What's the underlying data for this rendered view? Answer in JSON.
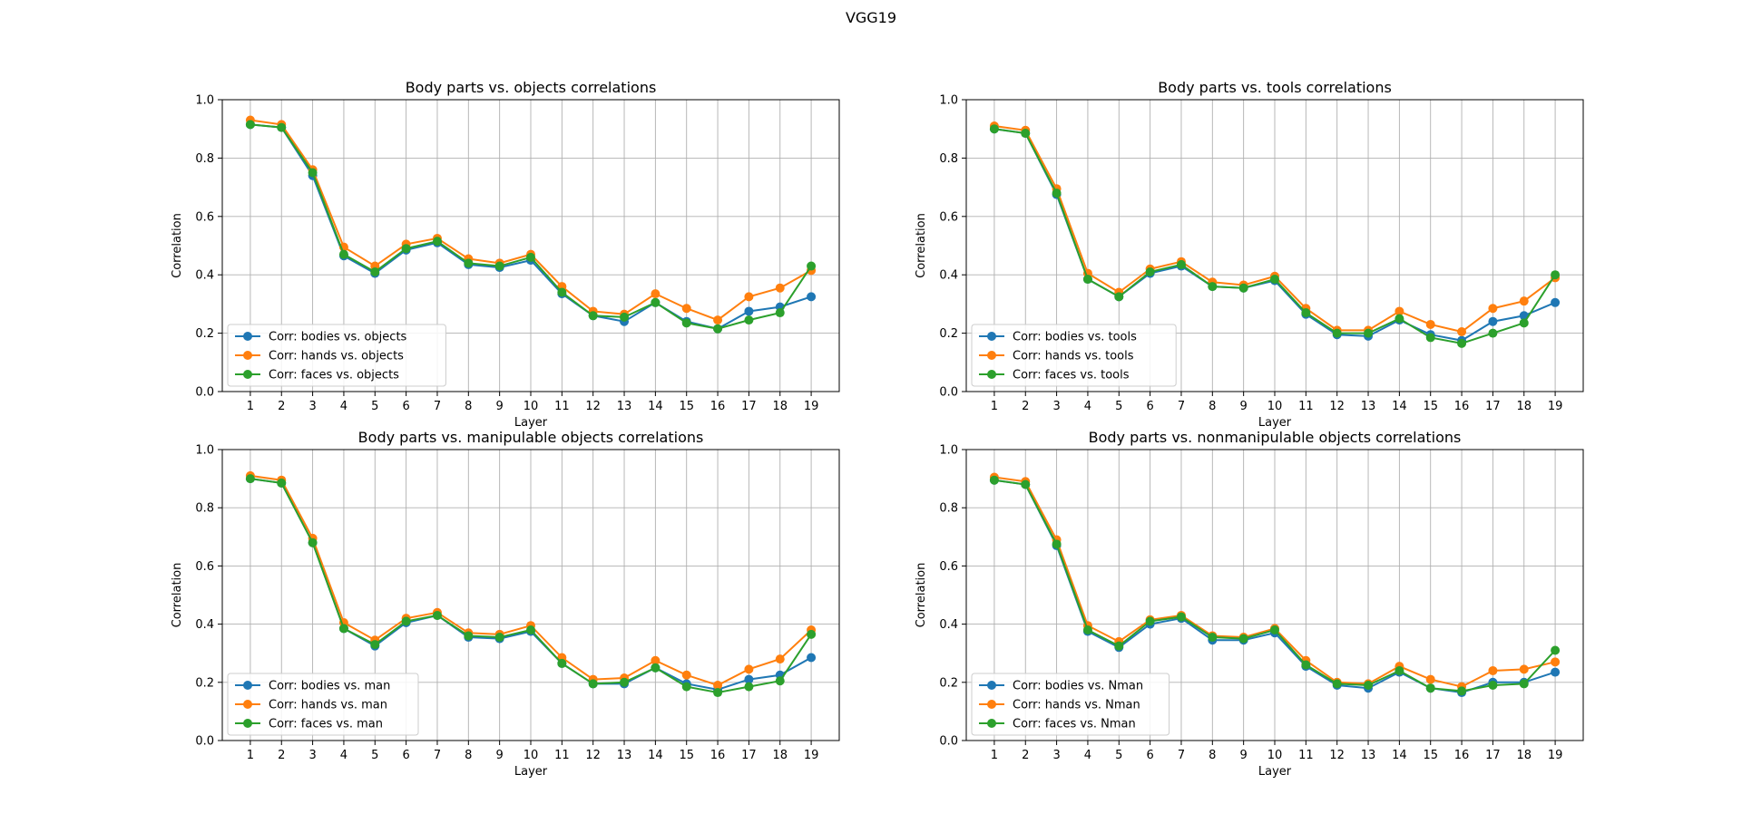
{
  "figure": {
    "suptitle": "VGG19"
  },
  "colors": {
    "series": [
      "#1f77b4",
      "#ff7f0e",
      "#2ca02c"
    ],
    "grid": "#b0b0b0"
  },
  "chart_data": [
    {
      "type": "line",
      "title": "Body parts vs. objects correlations",
      "xlabel": "Layer",
      "ylabel": "Correlation",
      "x": [
        1,
        2,
        3,
        4,
        5,
        6,
        7,
        8,
        9,
        10,
        11,
        12,
        13,
        14,
        15,
        16,
        17,
        18,
        19
      ],
      "xticks": [
        "1",
        "2",
        "3",
        "4",
        "5",
        "6",
        "7",
        "8",
        "9",
        "10",
        "11",
        "12",
        "13",
        "14",
        "15",
        "16",
        "17",
        "18",
        "19"
      ],
      "ylim": [
        0,
        1
      ],
      "yticks": [
        "0.0",
        "0.2",
        "0.4",
        "0.6",
        "0.8",
        "1.0"
      ],
      "grid": true,
      "legend_position": "lower-left",
      "series": [
        {
          "name": "Corr: bodies vs. objects",
          "values": [
            0.915,
            0.905,
            0.74,
            0.465,
            0.405,
            0.485,
            0.51,
            0.435,
            0.425,
            0.45,
            0.335,
            0.26,
            0.24,
            0.305,
            0.24,
            0.215,
            0.275,
            0.29,
            0.325
          ]
        },
        {
          "name": "Corr: hands vs. objects",
          "values": [
            0.93,
            0.915,
            0.76,
            0.495,
            0.43,
            0.505,
            0.525,
            0.455,
            0.44,
            0.47,
            0.36,
            0.275,
            0.265,
            0.335,
            0.285,
            0.245,
            0.325,
            0.355,
            0.415
          ]
        },
        {
          "name": "Corr: faces vs. objects",
          "values": [
            0.915,
            0.905,
            0.75,
            0.47,
            0.41,
            0.49,
            0.515,
            0.44,
            0.43,
            0.46,
            0.34,
            0.26,
            0.255,
            0.305,
            0.235,
            0.215,
            0.245,
            0.27,
            0.43
          ]
        }
      ]
    },
    {
      "type": "line",
      "title": "Body parts vs. tools correlations",
      "xlabel": "Layer",
      "ylabel": "Correlation",
      "x": [
        1,
        2,
        3,
        4,
        5,
        6,
        7,
        8,
        9,
        10,
        11,
        12,
        13,
        14,
        15,
        16,
        17,
        18,
        19
      ],
      "xticks": [
        "1",
        "2",
        "3",
        "4",
        "5",
        "6",
        "7",
        "8",
        "9",
        "10",
        "11",
        "12",
        "13",
        "14",
        "15",
        "16",
        "17",
        "18",
        "19"
      ],
      "ylim": [
        0,
        1
      ],
      "yticks": [
        "0.0",
        "0.2",
        "0.4",
        "0.6",
        "0.8",
        "1.0"
      ],
      "grid": true,
      "legend_position": "lower-left",
      "series": [
        {
          "name": "Corr: bodies vs. tools",
          "values": [
            0.9,
            0.885,
            0.675,
            0.385,
            0.325,
            0.405,
            0.43,
            0.36,
            0.355,
            0.38,
            0.265,
            0.195,
            0.19,
            0.245,
            0.195,
            0.175,
            0.24,
            0.26,
            0.305
          ]
        },
        {
          "name": "Corr: hands vs. tools",
          "values": [
            0.91,
            0.895,
            0.695,
            0.405,
            0.34,
            0.42,
            0.445,
            0.375,
            0.365,
            0.395,
            0.285,
            0.21,
            0.21,
            0.275,
            0.23,
            0.205,
            0.285,
            0.31,
            0.39
          ]
        },
        {
          "name": "Corr: faces vs. tools",
          "values": [
            0.9,
            0.885,
            0.68,
            0.385,
            0.325,
            0.41,
            0.435,
            0.36,
            0.355,
            0.385,
            0.27,
            0.2,
            0.2,
            0.25,
            0.185,
            0.165,
            0.2,
            0.235,
            0.4
          ]
        }
      ]
    },
    {
      "type": "line",
      "title": "Body parts vs. manipulable objects correlations",
      "xlabel": "Layer",
      "ylabel": "Correlation",
      "x": [
        1,
        2,
        3,
        4,
        5,
        6,
        7,
        8,
        9,
        10,
        11,
        12,
        13,
        14,
        15,
        16,
        17,
        18,
        19
      ],
      "xticks": [
        "1",
        "2",
        "3",
        "4",
        "5",
        "6",
        "7",
        "8",
        "9",
        "10",
        "11",
        "12",
        "13",
        "14",
        "15",
        "16",
        "17",
        "18",
        "19"
      ],
      "ylim": [
        0,
        1
      ],
      "yticks": [
        "0.0",
        "0.2",
        "0.4",
        "0.6",
        "0.8",
        "1.0"
      ],
      "grid": true,
      "legend_position": "lower-left",
      "series": [
        {
          "name": "Corr: bodies vs. man",
          "values": [
            0.9,
            0.885,
            0.68,
            0.385,
            0.325,
            0.405,
            0.43,
            0.355,
            0.35,
            0.375,
            0.265,
            0.195,
            0.195,
            0.25,
            0.195,
            0.175,
            0.21,
            0.225,
            0.285
          ]
        },
        {
          "name": "Corr: hands vs. man",
          "values": [
            0.91,
            0.895,
            0.695,
            0.405,
            0.345,
            0.42,
            0.44,
            0.37,
            0.365,
            0.395,
            0.285,
            0.21,
            0.215,
            0.275,
            0.225,
            0.19,
            0.245,
            0.28,
            0.38
          ]
        },
        {
          "name": "Corr: faces vs. man",
          "values": [
            0.9,
            0.885,
            0.68,
            0.385,
            0.33,
            0.41,
            0.43,
            0.36,
            0.355,
            0.38,
            0.265,
            0.195,
            0.2,
            0.25,
            0.185,
            0.165,
            0.185,
            0.205,
            0.365
          ]
        }
      ]
    },
    {
      "type": "line",
      "title": "Body parts vs. nonmanipulable objects correlations",
      "xlabel": "Layer",
      "ylabel": "Correlation",
      "x": [
        1,
        2,
        3,
        4,
        5,
        6,
        7,
        8,
        9,
        10,
        11,
        12,
        13,
        14,
        15,
        16,
        17,
        18,
        19
      ],
      "xticks": [
        "1",
        "2",
        "3",
        "4",
        "5",
        "6",
        "7",
        "8",
        "9",
        "10",
        "11",
        "12",
        "13",
        "14",
        "15",
        "16",
        "17",
        "18",
        "19"
      ],
      "ylim": [
        0,
        1
      ],
      "yticks": [
        "0.0",
        "0.2",
        "0.4",
        "0.6",
        "0.8",
        "1.0"
      ],
      "grid": true,
      "legend_position": "lower-left",
      "series": [
        {
          "name": "Corr: bodies vs. Nman",
          "values": [
            0.895,
            0.88,
            0.67,
            0.375,
            0.32,
            0.4,
            0.42,
            0.345,
            0.345,
            0.37,
            0.255,
            0.19,
            0.18,
            0.235,
            0.18,
            0.165,
            0.2,
            0.2,
            0.235
          ]
        },
        {
          "name": "Corr: hands vs. Nman",
          "values": [
            0.905,
            0.89,
            0.69,
            0.395,
            0.34,
            0.415,
            0.43,
            0.36,
            0.355,
            0.385,
            0.275,
            0.2,
            0.195,
            0.255,
            0.21,
            0.185,
            0.24,
            0.245,
            0.27
          ]
        },
        {
          "name": "Corr: faces vs. Nman",
          "values": [
            0.895,
            0.88,
            0.675,
            0.38,
            0.325,
            0.41,
            0.425,
            0.355,
            0.35,
            0.38,
            0.26,
            0.195,
            0.19,
            0.24,
            0.18,
            0.17,
            0.19,
            0.195,
            0.31
          ]
        }
      ]
    }
  ]
}
